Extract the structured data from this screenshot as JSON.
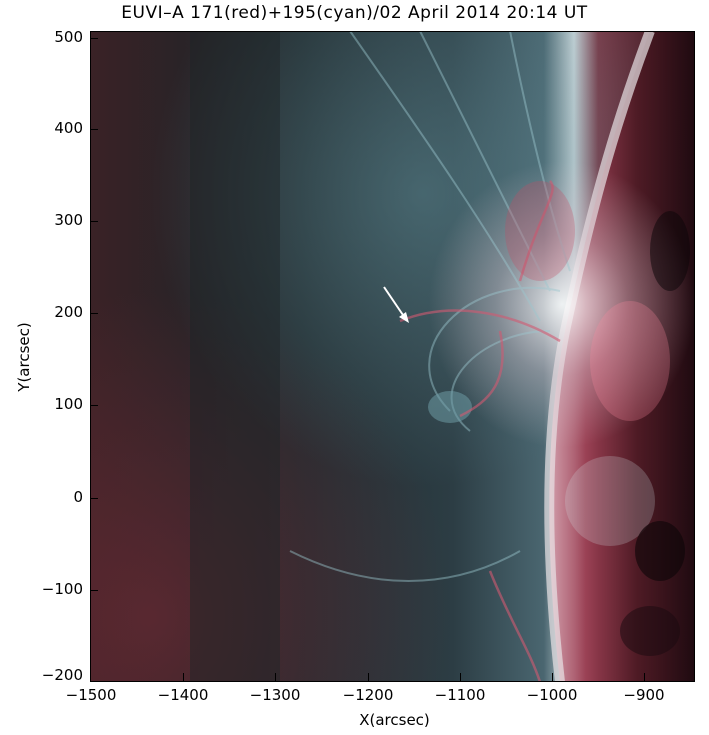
{
  "title": "EUVI–A 171(red)+195(cyan)/02 April 2014 20:14 UT",
  "x_axis": {
    "label": "X(arcsec)",
    "ticks": [
      "−1500",
      "−1400",
      "−1300",
      "−1200",
      "−1100",
      "−1000",
      "−900"
    ],
    "range": [
      -1500,
      -845
    ]
  },
  "y_axis": {
    "label": "Y(arcsec)",
    "ticks": [
      "500",
      "400",
      "300",
      "200",
      "100",
      "0",
      "−100",
      "−200"
    ],
    "range": [
      -200,
      505
    ]
  },
  "image": {
    "description_icon": "solar-euv-composite",
    "colors": {
      "red_channel": "#c8506a",
      "cyan_channel": "#7fb4bf",
      "background": "#2a2d2f"
    },
    "arrow_icon": "white-arrow-pointing-down-right"
  }
}
